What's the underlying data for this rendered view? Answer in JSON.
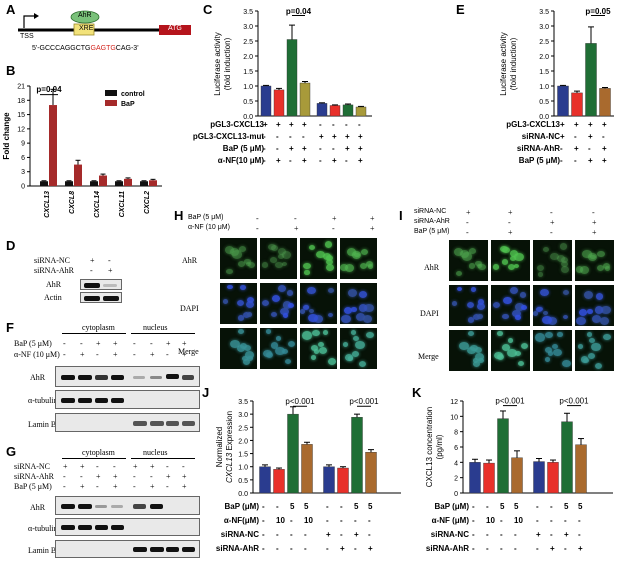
{
  "panel_labels": {
    "A": "A",
    "B": "B",
    "C": "C",
    "D": "D",
    "E": "E",
    "F": "F",
    "G": "G",
    "H": "H",
    "I": "I",
    "J": "J",
    "K": "K"
  },
  "panelA": {
    "tss": "TSS",
    "ahr": "AhR",
    "xre": "XRE",
    "atg": "ATG",
    "seq_prefix": "5'-GCCCAGGCTG",
    "seq_core": "GAGTG",
    "seq_suffix": "CAG-3'"
  },
  "panelB": {
    "ylabel": "Fold change",
    "pval": "p=0.04",
    "legend": [
      {
        "name": "control",
        "color": "#111111"
      },
      {
        "name": "BaP",
        "color": "#a52a2a"
      }
    ],
    "categories": [
      "CXCL13",
      "CXCL8",
      "CXCL14",
      "CXCL11",
      "CXCL2"
    ],
    "yticks": [
      "0",
      "3",
      "6",
      "9",
      "12",
      "15",
      "18",
      "21"
    ]
  },
  "panelC": {
    "ylabel1": "Luciferase activity",
    "ylabel2": "(fold induction)",
    "pval": "p=0.04",
    "yticks": [
      "0.0",
      "0.5",
      "1.0",
      "1.5",
      "2.0",
      "2.5",
      "3.0",
      "3.5"
    ],
    "rows": [
      {
        "label": "pGL3-CXCL13",
        "vals": [
          "+",
          "+",
          "+",
          "+",
          "-",
          "-",
          "-",
          "-"
        ]
      },
      {
        "label": "pGL3-CXCL13-mut",
        "vals": [
          "-",
          "-",
          "-",
          "-",
          "+",
          "+",
          "+",
          "+"
        ]
      },
      {
        "label": "BaP (5 μM)",
        "vals": [
          "-",
          "-",
          "+",
          "+",
          "-",
          "-",
          "+",
          "+"
        ]
      },
      {
        "label": "α-NF(10 μM)",
        "vals": [
          "-",
          "+",
          "-",
          "+",
          "-",
          "+",
          "-",
          "+"
        ]
      }
    ]
  },
  "panelD": {
    "row1": "siRNA-NC",
    "row1_vals": [
      "+",
      "-"
    ],
    "row2": "siRNA-AhR",
    "row2_vals": [
      "-",
      "+"
    ],
    "blot1": "AhR",
    "blot2": "Actin"
  },
  "panelE": {
    "ylabel1": "Luciferase activity",
    "ylabel2": "(fold induction)",
    "pval": "p=0.05",
    "yticks": [
      "0.0",
      "0.5",
      "1.0",
      "1.5",
      "2.0",
      "2.5",
      "3.0",
      "3.5"
    ],
    "rows": [
      {
        "label": "pGL3-CXCL13",
        "vals": [
          "+",
          "+",
          "+",
          "+"
        ]
      },
      {
        "label": "siRNA-NC",
        "vals": [
          "+",
          "-",
          "+",
          "-"
        ]
      },
      {
        "label": "siRNA-AhR",
        "vals": [
          "-",
          "+",
          "-",
          "+"
        ]
      },
      {
        "label": "BaP (5 μM)",
        "vals": [
          "-",
          "-",
          "+",
          "+"
        ]
      }
    ]
  },
  "panelF": {
    "cytoplasm": "cytoplasm",
    "nucleus": "nucleus",
    "row1": "BaP (5 μM)",
    "row1_vals": [
      "-",
      "-",
      "+",
      "+",
      "-",
      "-",
      "+",
      "+"
    ],
    "row2": "α-NF (10 μM)",
    "row2_vals": [
      "-",
      "+",
      "-",
      "+",
      "-",
      "+",
      "-",
      "+"
    ],
    "blot1": "AhR",
    "blot2": "α-tubulin",
    "blot3": "Lamin B"
  },
  "panelG": {
    "cytoplasm": "cytoplasm",
    "nucleus": "nucleus",
    "row1": "siRNA-NC",
    "row1_vals": [
      "+",
      "+",
      "-",
      "-",
      "+",
      "+",
      "-",
      "-"
    ],
    "row2": "siRNA-AhR",
    "row2_vals": [
      "-",
      "-",
      "+",
      "+",
      "-",
      "-",
      "+",
      "+"
    ],
    "row3": "BaP (5 μM)",
    "row3_vals": [
      "-",
      "+",
      "-",
      "+",
      "-",
      "+",
      "-",
      "+"
    ],
    "blot1": "AhR",
    "blot2": "α-tubulin",
    "blot3": "Lamin B"
  },
  "panelH": {
    "row1": "BaP (5 μM)",
    "row1_vals": [
      "-",
      "-",
      "+",
      "+"
    ],
    "row2": "α-NF (10 μM)",
    "row2_vals": [
      "-",
      "+",
      "-",
      "+"
    ],
    "img_rows": [
      "AhR",
      "DAPI",
      "Merge"
    ]
  },
  "panelI": {
    "row1": "siRNA-NC",
    "row1_vals": [
      "+",
      "+",
      "-",
      "-"
    ],
    "row2": "siRNA-AhR",
    "row2_vals": [
      "-",
      "-",
      "+",
      "+"
    ],
    "row3": "BaP (5 μM)",
    "row3_vals": [
      "-",
      "+",
      "-",
      "+"
    ],
    "img_rows": [
      "AhR",
      "DAPI",
      "Merge"
    ]
  },
  "panelJ": {
    "ylabel1": "Normalized",
    "ylabel2_gene": "CXCL13",
    "ylabel2_rest": " Expression",
    "pval1": "p<0.001",
    "pval2": "p<0.001",
    "yticks": [
      "0.0",
      "0.5",
      "1.0",
      "1.5",
      "2.0",
      "2.5",
      "3.0",
      "3.5"
    ],
    "rows": [
      {
        "label": "BaP (μM)",
        "vals": [
          "-",
          "-",
          "5",
          "5",
          "-",
          "-",
          "5",
          "5"
        ]
      },
      {
        "label": "α-NF(μM)",
        "vals": [
          "-",
          "10",
          "-",
          "10",
          "-",
          "-",
          "-",
          "-"
        ]
      },
      {
        "label": "siRNA-NC",
        "vals": [
          "-",
          "-",
          "-",
          "-",
          "+",
          "-",
          "+",
          "-"
        ]
      },
      {
        "label": "siRNA-AhR",
        "vals": [
          "-",
          "-",
          "-",
          "-",
          "-",
          "+",
          "-",
          "+"
        ]
      }
    ]
  },
  "panelK": {
    "ylabel1": "CXCL13 concentration",
    "ylabel2": "(pg/ml)",
    "pval1": "p<0.001",
    "pval2": "p<0.001",
    "yticks": [
      "0",
      "2",
      "4",
      "6",
      "8",
      "10",
      "12"
    ],
    "rows": [
      {
        "label": "BaP (μM)",
        "vals": [
          "-",
          "-",
          "5",
          "5",
          "-",
          "-",
          "5",
          "5"
        ]
      },
      {
        "label": "α-NF (μM)",
        "vals": [
          "-",
          "10",
          "-",
          "10",
          "-",
          "-",
          "-",
          "-"
        ]
      },
      {
        "label": "siRNA-NC",
        "vals": [
          "-",
          "-",
          "-",
          "-",
          "+",
          "-",
          "+",
          "-"
        ]
      },
      {
        "label": "siRNA-AhR",
        "vals": [
          "-",
          "-",
          "-",
          "-",
          "-",
          "+",
          "-",
          "+"
        ]
      }
    ]
  },
  "chart_data": [
    {
      "type": "bar",
      "panel": "B",
      "categories": [
        "CXCL13",
        "CXCL8",
        "CXCL14",
        "CXCL11",
        "CXCL2"
      ],
      "series": [
        {
          "name": "control",
          "values": [
            1,
            1,
            1,
            1,
            1
          ],
          "errors": [
            0.1,
            0.1,
            0.1,
            0.1,
            0.1
          ]
        },
        {
          "name": "BaP",
          "values": [
            17,
            4.5,
            2.2,
            1.5,
            1.2
          ],
          "errors": [
            3.3,
            0.9,
            0.3,
            0.2,
            0.2
          ]
        }
      ],
      "ylabel": "Fold change",
      "ylim": [
        0,
        21
      ]
    },
    {
      "type": "bar",
      "panel": "C",
      "values": [
        1.0,
        0.87,
        2.55,
        1.1,
        0.42,
        0.35,
        0.37,
        0.3
      ],
      "errors": [
        0.02,
        0.05,
        0.48,
        0.05,
        0.02,
        0.02,
        0.03,
        0.02
      ],
      "colors": [
        "#2a3c8f",
        "#e8302a",
        "#1f6e35",
        "#a89a3a",
        "#2a3c8f",
        "#e8302a",
        "#1f6e35",
        "#a89a3a"
      ],
      "ylabel": "Luciferase activity (fold induction)",
      "ylim": [
        0,
        3.5
      ]
    },
    {
      "type": "bar",
      "panel": "E",
      "values": [
        1.0,
        0.77,
        2.42,
        0.92
      ],
      "errors": [
        0.02,
        0.06,
        0.55,
        0.03
      ],
      "colors": [
        "#2a3c8f",
        "#e8302a",
        "#1f6e35",
        "#a96a2e"
      ],
      "ylabel": "Luciferase activity (fold induction)",
      "ylim": [
        0,
        3.5
      ]
    },
    {
      "type": "bar",
      "panel": "J",
      "values": [
        1.0,
        0.9,
        3.0,
        1.85,
        1.0,
        0.95,
        2.88,
        1.55
      ],
      "errors": [
        0.07,
        0.05,
        0.28,
        0.08,
        0.07,
        0.05,
        0.12,
        0.1
      ],
      "colors": [
        "#2a3c8f",
        "#e8302a",
        "#1f6e35",
        "#a96a2e",
        "#2a3c8f",
        "#e8302a",
        "#1f6e35",
        "#a96a2e"
      ],
      "ylabel": "Normalized CXCL13 Expression",
      "ylim": [
        0,
        3.5
      ]
    },
    {
      "type": "bar",
      "panel": "K",
      "values": [
        4.0,
        3.9,
        9.7,
        4.6,
        4.1,
        4.0,
        9.3,
        6.3
      ],
      "errors": [
        0.4,
        0.4,
        1.0,
        0.9,
        0.4,
        0.3,
        1.1,
        0.8
      ],
      "colors": [
        "#2a3c8f",
        "#e8302a",
        "#1f6e35",
        "#a96a2e",
        "#2a3c8f",
        "#e8302a",
        "#1f6e35",
        "#a96a2e"
      ],
      "ylabel": "CXCL13 concentration (pg/ml)",
      "ylim": [
        0,
        12
      ]
    }
  ]
}
